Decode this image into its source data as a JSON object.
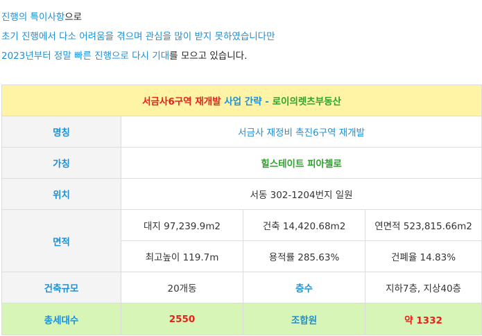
{
  "intro": {
    "line1_blue": "진행의 특이사항",
    "line1_rest": "으로",
    "line2": "초기 진행에서 다소 어려움을 겪으며 관심을 많이 받지 못하였습니다만",
    "line3_blue": "2023년부터 정말 빠른 진행으로 다시 기대",
    "line3_rest": "를 모으고 있습니다."
  },
  "table": {
    "title_red": "서금사6구역 재개발",
    "title_blue": " 사업 간략 - ",
    "title_green": "로이의렛츠부동산",
    "rows": {
      "name_label": "명칭",
      "name_value": "서금사 재정비 촉진6구역 재개발",
      "alias_label": "가칭",
      "alias_value": "힐스테이트 피아첼로",
      "location_label": "위치",
      "location_value": "서동 302-1204번지 일원",
      "area_label": "면적",
      "site_area": "대지 97,239.9m2",
      "building_area": "건축 14,420.68m2",
      "floor_area": "연면적 523,815.66m2",
      "max_height": "최고높이 119.7m",
      "floor_area_ratio": "용적률 285.63%",
      "building_coverage": "건폐율 14.83%",
      "scale_label": "건축규모",
      "scale_value": "20개동",
      "floors_label": "층수",
      "floors_value": "지하7층, 지상40층",
      "households_label": "총세대수",
      "households_value": "2550",
      "members_label": "조합원",
      "members_value": "약 1332"
    }
  }
}
